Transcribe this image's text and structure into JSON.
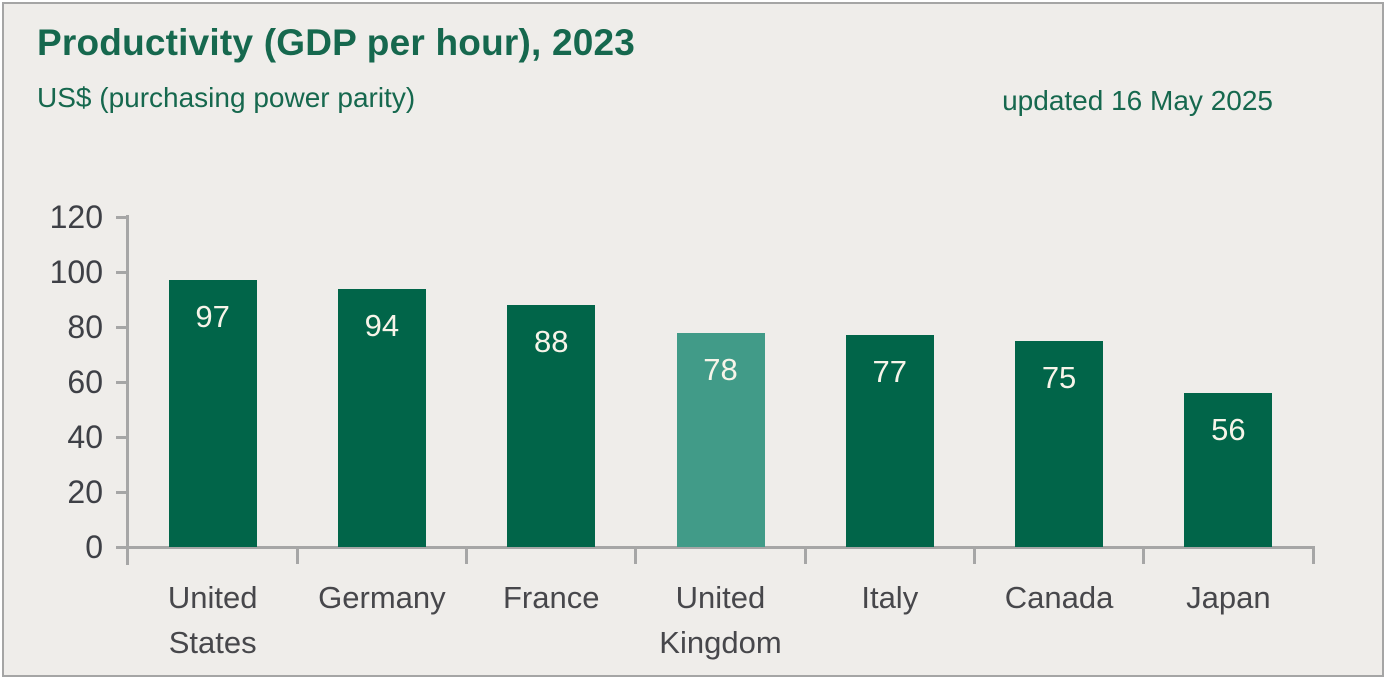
{
  "card": {
    "title": "Productivity (GDP per hour), 2023",
    "subtitle": "US$ (purchasing power parity)",
    "updated": "updated 16 May 2025"
  },
  "colors": {
    "card_background": "#efedea",
    "frame_border": "#a5a5a5",
    "green_text": "#16684e",
    "bar_default": "#016549",
    "bar_highlight": "#419b88",
    "axis_gray": "#a6a6a6",
    "y_tick_label": "#3e4046",
    "x_category_label": "#47474b",
    "value_label": "#f7f4e9"
  },
  "chart_data": {
    "type": "bar",
    "title": "Productivity (GDP per hour), 2023",
    "subtitle": "US$ (purchasing power parity)",
    "annotation": "updated 16 May 2025",
    "categories": [
      "United\nStates",
      "Germany",
      "France",
      "United\nKingdom",
      "Italy",
      "Canada",
      "Japan"
    ],
    "values": [
      97,
      94,
      88,
      78,
      77,
      75,
      56
    ],
    "highlight_index": 3,
    "highlight_category": "United Kingdom",
    "xlabel": "",
    "ylabel": "",
    "ylim": [
      0,
      120
    ],
    "yticks": [
      0,
      20,
      40,
      60,
      80,
      100,
      120
    ],
    "grid": false,
    "legend": false,
    "value_labels_shown": true
  }
}
